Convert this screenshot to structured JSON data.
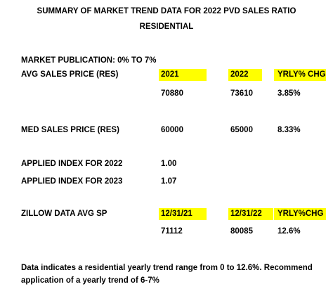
{
  "title": {
    "line1": "SUMMARY OF MARKET TREND DATA FOR 2022 PVD SALES RATIO",
    "line2": "RESIDENTIAL"
  },
  "market_publication": "MARKET PUBLICATION:   0% TO 7%",
  "avg_sales": {
    "label": "AVG SALES PRICE (RES)",
    "headers": [
      "2021",
      "2022",
      "YRLY% CHG"
    ],
    "values": [
      "70880",
      "73610",
      "3.85%"
    ]
  },
  "med_sales": {
    "label": "MED SALES PRICE (RES)",
    "values": [
      "60000",
      "65000",
      "8.33%"
    ]
  },
  "applied_2022": {
    "label": "APPLIED INDEX FOR 2022",
    "value": "1.00"
  },
  "applied_2023": {
    "label": "APPLIED INDEX FOR 2023",
    "value": "1.07"
  },
  "zillow": {
    "label": "ZILLOW DATA AVG SP",
    "headers": [
      "12/31/21",
      "12/31/22",
      "YRLY%CHG"
    ],
    "values": [
      "71112",
      "80085",
      "12.6%"
    ]
  },
  "note": "Data indicates a residential yearly trend range from 0 to 12.6%. Recommend application of a yearly trend of 6-7%",
  "highlight_color": "#ffff00"
}
